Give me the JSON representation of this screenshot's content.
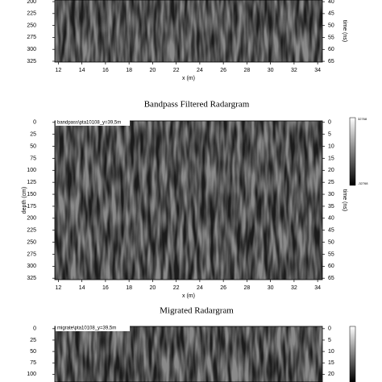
{
  "panels": [
    {
      "x_label": "x (m)",
      "y2_label": "time (ns)",
      "xlim": [
        11.7,
        34.4
      ],
      "xticks": [
        12,
        14,
        16,
        18,
        20,
        22,
        24,
        26,
        28,
        30,
        32,
        34
      ],
      "ylim": [
        196.6,
        326.7
      ],
      "yticks": [
        200,
        225,
        250,
        275,
        300,
        325
      ],
      "y2lim": [
        39.3,
        65.3
      ],
      "y2ticks": [
        40,
        45,
        50,
        55,
        60,
        65
      ]
    },
    {
      "title": "Bandpass Filtered Radargram",
      "label": "bandpass\\pta10108_y=39,5m",
      "x_label": "x (m)",
      "y_label": "depth (cm)",
      "y2_label": "time (ns)",
      "xlim": [
        11.7,
        34.4
      ],
      "xticks": [
        12,
        14,
        16,
        18,
        20,
        22,
        24,
        26,
        28,
        30,
        32,
        34
      ],
      "ylim": [
        -3,
        328
      ],
      "yticks": [
        0,
        25,
        50,
        75,
        100,
        125,
        150,
        175,
        200,
        225,
        250,
        275,
        300,
        325
      ],
      "y2lim": [
        -0.6,
        65.6
      ],
      "y2ticks": [
        0,
        5,
        10,
        15,
        20,
        25,
        30,
        35,
        40,
        45,
        50,
        55,
        60,
        65
      ],
      "colorbar": [
        "32768",
        "-32768"
      ]
    },
    {
      "title": "Migrated Radargram",
      "label": "migrate\\pta10108_y=39,5m",
      "xlim": [
        11.7,
        34.4
      ],
      "ylim": [
        -5,
        117
      ],
      "yticks": [
        0,
        25,
        50,
        75,
        100
      ],
      "y2lim": [
        -1,
        23.4
      ],
      "y2ticks": [
        0,
        5,
        10,
        15,
        20
      ]
    }
  ]
}
